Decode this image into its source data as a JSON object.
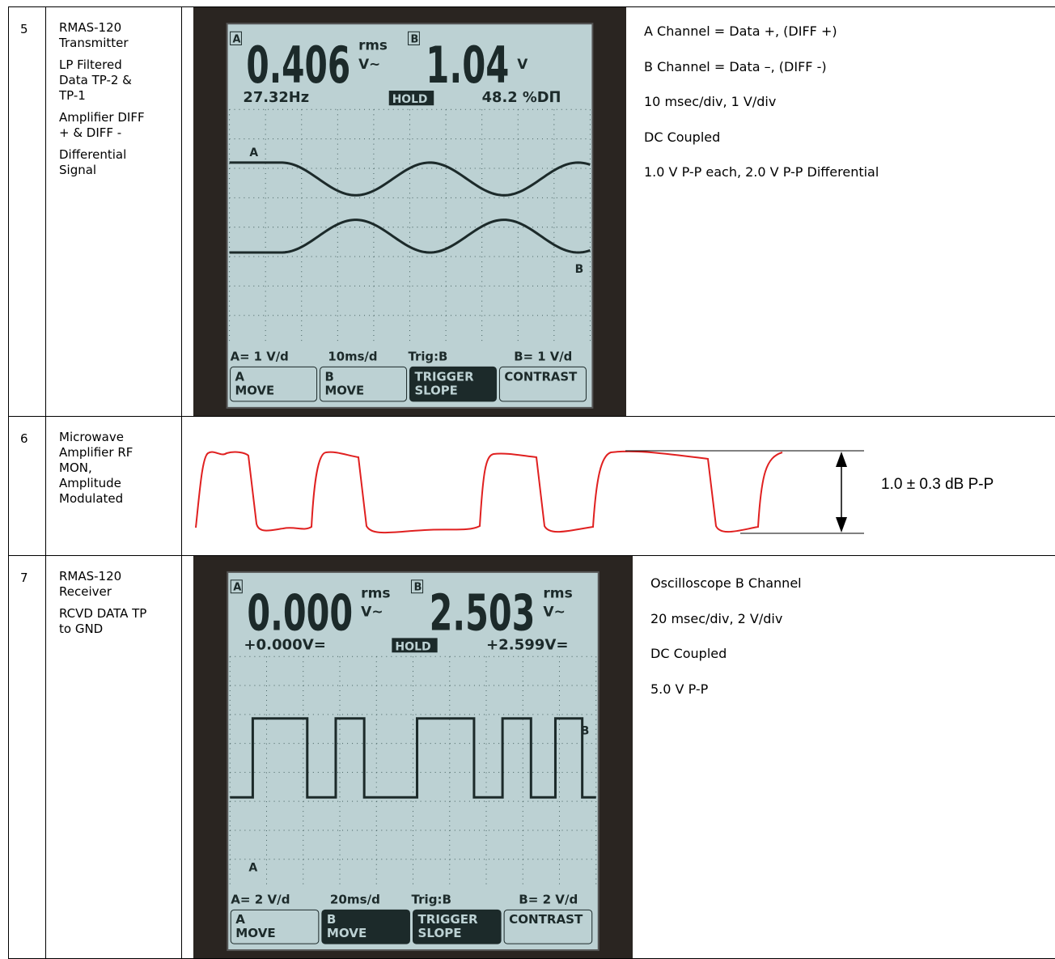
{
  "table": {
    "rows": [
      {
        "number": "5",
        "description": [
          "RMAS-120 Transmitter",
          "LP Filtered Data TP-2 & TP-1",
          "Amplifier DIFF + & DIFF -",
          "Differential Signal"
        ],
        "screen": {
          "a_tag": "A",
          "a_value": "0.406",
          "a_unit_top": "rms",
          "a_unit_bottom": "V~",
          "b_tag": "B",
          "b_value": "1.04",
          "b_unit_bottom": "V",
          "left": "27.32Hz",
          "center": "HOLD",
          "right": "48.2 %DΠ",
          "trace_a": "A",
          "trace_b": "B",
          "status": [
            "A= 1 V/d",
            "10ms/d",
            "Trig:B",
            "B= 1 V/d"
          ],
          "softkeys": [
            [
              "A",
              "MOVE"
            ],
            [
              "B",
              "MOVE"
            ],
            [
              "TRIGGER",
              "SLOPE"
            ],
            [
              "CONTRAST"
            ]
          ]
        },
        "notes": [
          "A Channel = Data +, (DIFF +)",
          "B Channel = Data –, (DIFF -)",
          "10 msec/div, 1 V/div",
          "DC Coupled",
          "1.0 V P-P each, 2.0 V P-P Differential"
        ]
      },
      {
        "number": "6",
        "description": [
          "Microwave Amplifier RF MON, Amplitude Modulated"
        ],
        "label": "1.0 ± 0.3 dB P-P"
      },
      {
        "number": "7",
        "description": [
          "RMAS-120 Receiver",
          "RCVD DATA TP to GND"
        ],
        "screen": {
          "a_tag": "A",
          "a_value": "0.000",
          "a_unit_top": "rms",
          "a_unit_bottom": "V~",
          "b_tag": "B",
          "b_value": "2.503",
          "b_unit_top": "rms",
          "b_unit_bottom": "V~",
          "left": "+0.000V=",
          "center": "HOLD",
          "right": "+2.599V=",
          "trace_a": "A",
          "trace_b": "B",
          "status": [
            "A= 2 V/d",
            "20ms/d",
            "Trig:B",
            "B= 2 V/d"
          ],
          "softkeys": [
            [
              "A",
              "MOVE"
            ],
            [
              "B",
              "MOVE"
            ],
            [
              "TRIGGER",
              "SLOPE"
            ],
            [
              "CONTRAST"
            ]
          ]
        },
        "notes": [
          "Oscilloscope B Channel",
          "20 msec/div, 2 V/div",
          "DC Coupled",
          "5.0 V P-P"
        ]
      }
    ]
  }
}
